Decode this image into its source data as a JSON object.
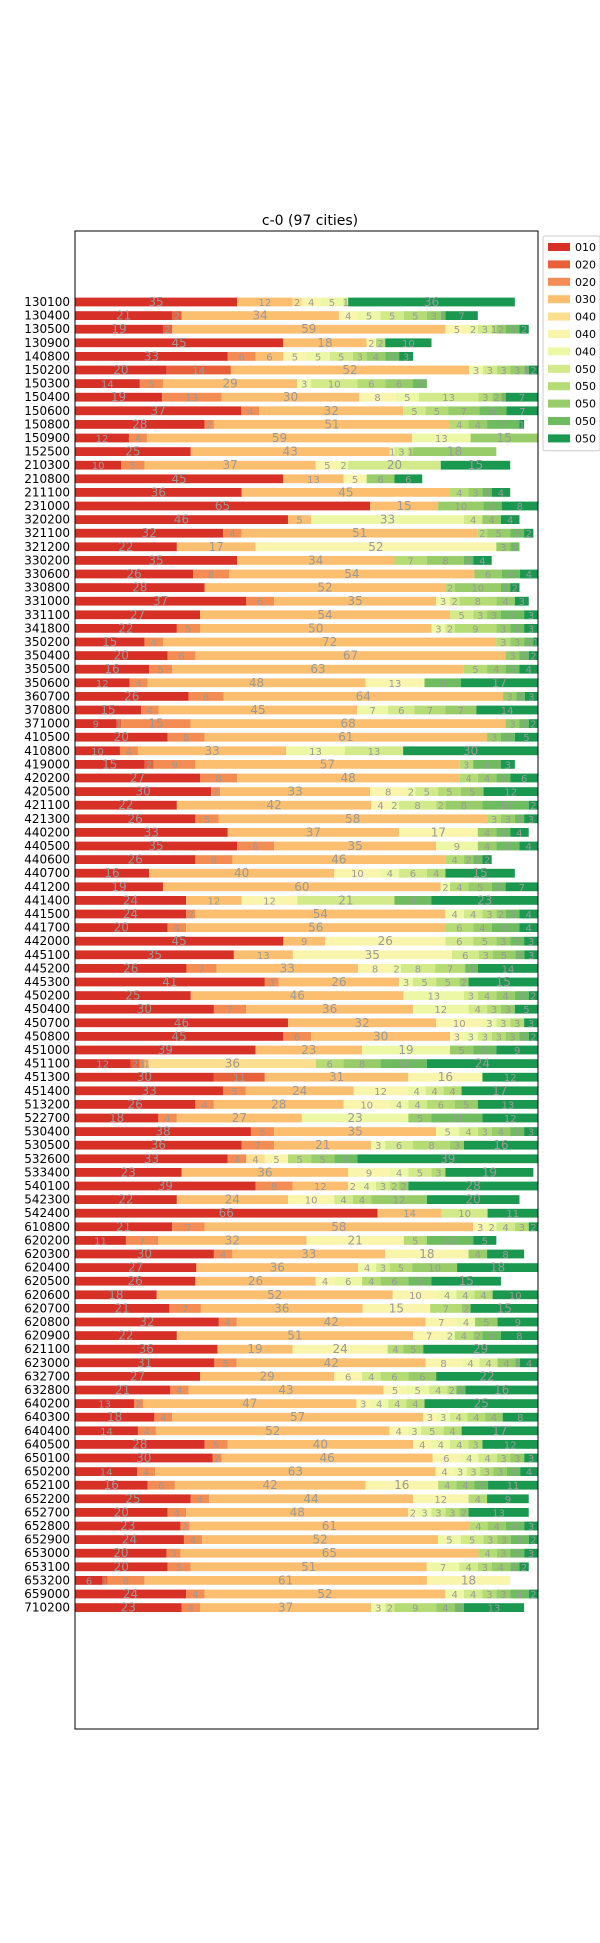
{
  "chart_data": {
    "type": "bar",
    "orientation": "horizontal",
    "stacked": true,
    "title": "c-0 (97 cities)",
    "xlabel": "",
    "ylabel": "",
    "xlim": [
      0,
      100
    ],
    "legend_position": "outside-top-right",
    "grid": false,
    "series": [
      {
        "name": "010",
        "color": "#d73027"
      },
      {
        "name": "020",
        "color": "#e8603a"
      },
      {
        "name": "020",
        "color": "#f48d53"
      },
      {
        "name": "030",
        "color": "#fbbf6f"
      },
      {
        "name": "040",
        "color": "#fddd8e"
      },
      {
        "name": "040",
        "color": "#f9f5ad"
      },
      {
        "name": "040",
        "color": "#edf8a6"
      },
      {
        "name": "050",
        "color": "#d2ea8a"
      },
      {
        "name": "050",
        "color": "#b5dc74"
      },
      {
        "name": "050",
        "color": "#97cc68"
      },
      {
        "name": "050",
        "color": "#6fbb5f"
      },
      {
        "name": "050",
        "color": "#1a9850"
      }
    ],
    "categories": [
      "130100",
      "130400",
      "130500",
      "130900",
      "140800",
      "150200",
      "150300",
      "150400",
      "150600",
      "150800",
      "150900",
      "152500",
      "210300",
      "210800",
      "211100",
      "231000",
      "320200",
      "321100",
      "321200",
      "330200",
      "330600",
      "330800",
      "331000",
      "331100",
      "341800",
      "350200",
      "350400",
      "350500",
      "350600",
      "360700",
      "370800",
      "371000",
      "410500",
      "410800",
      "419000",
      "420200",
      "420500",
      "421100",
      "421300",
      "440200",
      "440500",
      "440600",
      "440700",
      "441200",
      "441400",
      "441500",
      "441700",
      "442000",
      "445100",
      "445200",
      "445300",
      "450200",
      "450400",
      "450700",
      "450800",
      "451000",
      "451100",
      "451300",
      "451400",
      "513200",
      "522700",
      "530400",
      "530500",
      "532600",
      "533400",
      "540100",
      "542300",
      "542400",
      "610800",
      "620200",
      "620300",
      "620400",
      "620500",
      "620600",
      "620700",
      "620800",
      "620900",
      "621100",
      "623000",
      "632700",
      "632800",
      "640200",
      "640300",
      "640400",
      "640500",
      "650100",
      "650200",
      "652100",
      "652200",
      "652700",
      "652800",
      "652900",
      "653000",
      "653100",
      "653200",
      "659000",
      "710200"
    ],
    "values": [
      [
        35,
        0,
        0,
        12,
        2,
        4,
        5,
        1,
        0,
        0,
        0,
        36
      ],
      [
        21,
        2,
        0,
        34,
        0,
        4,
        5,
        5,
        5,
        3,
        1,
        7
      ],
      [
        19,
        2,
        0,
        59,
        0,
        5,
        2,
        3,
        1,
        2,
        3,
        2
      ],
      [
        45,
        0,
        0,
        18,
        0,
        2,
        0,
        0,
        2,
        0,
        0,
        10
      ],
      [
        33,
        0,
        6,
        6,
        0,
        5,
        5,
        5,
        3,
        4,
        3,
        3
      ],
      [
        20,
        14,
        0,
        52,
        0,
        0,
        3,
        3,
        3,
        3,
        1,
        2
      ],
      [
        14,
        0,
        5,
        29,
        0,
        0,
        3,
        10,
        6,
        6,
        3,
        0
      ],
      [
        19,
        0,
        13,
        30,
        0,
        8,
        5,
        13,
        3,
        2,
        1,
        7
      ],
      [
        37,
        0,
        4,
        32,
        0,
        0,
        0,
        5,
        5,
        7,
        6,
        7
      ],
      [
        28,
        0,
        2,
        51,
        0,
        0,
        0,
        0,
        4,
        4,
        7,
        1
      ],
      [
        12,
        0,
        4,
        59,
        0,
        0,
        13,
        0,
        0,
        15,
        0,
        0
      ],
      [
        25,
        0,
        0,
        43,
        0,
        0,
        1,
        3,
        1,
        18,
        0,
        0
      ],
      [
        10,
        0,
        5,
        37,
        0,
        5,
        2,
        20,
        0,
        0,
        0,
        15
      ],
      [
        45,
        0,
        0,
        13,
        0,
        5,
        0,
        0,
        0,
        6,
        0,
        6
      ],
      [
        36,
        0,
        0,
        45,
        0,
        0,
        0,
        0,
        4,
        3,
        2,
        4
      ],
      [
        65,
        0,
        0,
        15,
        0,
        0,
        0,
        0,
        0,
        10,
        4,
        8
      ],
      [
        46,
        0,
        0,
        5,
        0,
        0,
        33,
        4,
        0,
        4,
        0,
        4
      ],
      [
        32,
        0,
        4,
        51,
        0,
        0,
        0,
        0,
        2,
        5,
        3,
        2
      ],
      [
        22,
        0,
        0,
        17,
        0,
        52,
        0,
        0,
        0,
        3,
        2,
        0
      ],
      [
        35,
        0,
        0,
        34,
        0,
        0,
        0,
        0,
        7,
        8,
        2,
        4
      ],
      [
        26,
        0,
        8,
        54,
        0,
        0,
        0,
        0,
        0,
        6,
        4,
        4
      ],
      [
        28,
        0,
        0,
        52,
        0,
        0,
        0,
        0,
        2,
        10,
        2,
        2
      ],
      [
        37,
        0,
        6,
        35,
        0,
        0,
        3,
        2,
        8,
        4,
        0,
        3
      ],
      [
        27,
        0,
        0,
        54,
        0,
        0,
        0,
        5,
        3,
        3,
        5,
        3
      ],
      [
        22,
        0,
        5,
        50,
        0,
        0,
        3,
        2,
        9,
        3,
        3,
        3
      ],
      [
        15,
        0,
        4,
        72,
        0,
        0,
        0,
        0,
        3,
        3,
        2,
        1
      ],
      [
        20,
        0,
        6,
        67,
        0,
        0,
        0,
        0,
        0,
        3,
        2,
        2
      ],
      [
        16,
        0,
        5,
        63,
        0,
        0,
        0,
        0,
        5,
        4,
        3,
        4
      ],
      [
        12,
        0,
        4,
        48,
        0,
        13,
        0,
        0,
        0,
        0,
        8,
        17
      ],
      [
        26,
        0,
        8,
        64,
        0,
        0,
        0,
        0,
        0,
        3,
        2,
        3
      ],
      [
        15,
        0,
        4,
        45,
        0,
        0,
        7,
        6,
        7,
        7,
        0,
        14
      ],
      [
        9,
        1,
        15,
        68,
        0,
        0,
        0,
        0,
        0,
        3,
        2,
        2
      ],
      [
        20,
        0,
        8,
        61,
        0,
        0,
        0,
        0,
        0,
        3,
        3,
        5
      ],
      [
        10,
        0,
        4,
        33,
        0,
        0,
        13,
        13,
        0,
        0,
        0,
        30
      ],
      [
        15,
        2,
        9,
        57,
        0,
        0,
        0,
        0,
        3,
        0,
        6,
        3
      ],
      [
        27,
        0,
        8,
        48,
        0,
        0,
        0,
        0,
        4,
        4,
        3,
        6
      ],
      [
        30,
        0,
        2,
        33,
        0,
        8,
        2,
        5,
        5,
        5,
        0,
        12
      ],
      [
        22,
        0,
        0,
        42,
        0,
        4,
        2,
        8,
        2,
        8,
        10,
        2
      ],
      [
        26,
        0,
        5,
        58,
        0,
        0,
        0,
        0,
        3,
        3,
        2,
        3
      ],
      [
        33,
        0,
        0,
        37,
        0,
        17,
        0,
        0,
        0,
        4,
        3,
        4
      ],
      [
        35,
        0,
        8,
        35,
        0,
        0,
        9,
        0,
        0,
        4,
        5,
        4
      ],
      [
        26,
        0,
        8,
        46,
        0,
        0,
        0,
        0,
        4,
        2,
        2,
        2
      ],
      [
        16,
        0,
        0,
        40,
        0,
        10,
        4,
        6,
        4,
        0,
        0,
        15
      ],
      [
        19,
        0,
        0,
        60,
        0,
        0,
        2,
        0,
        4,
        5,
        3,
        7
      ],
      [
        24,
        0,
        0,
        12,
        0,
        12,
        0,
        21,
        0,
        0,
        8,
        23
      ],
      [
        24,
        0,
        2,
        54,
        0,
        0,
        4,
        4,
        3,
        2,
        3,
        4
      ],
      [
        20,
        0,
        4,
        56,
        0,
        0,
        0,
        0,
        6,
        4,
        6,
        4
      ],
      [
        45,
        0,
        0,
        9,
        0,
        26,
        0,
        6,
        5,
        3,
        3,
        3
      ],
      [
        35,
        0,
        0,
        13,
        0,
        35,
        0,
        6,
        3,
        5,
        2,
        3
      ],
      [
        26,
        0,
        7,
        33,
        0,
        8,
        2,
        8,
        7,
        0,
        3,
        14
      ],
      [
        41,
        0,
        3,
        26,
        0,
        0,
        3,
        5,
        5,
        2,
        0,
        15
      ],
      [
        25,
        0,
        0,
        46,
        0,
        0,
        13,
        3,
        4,
        4,
        3,
        2
      ],
      [
        30,
        0,
        7,
        36,
        0,
        0,
        12,
        4,
        3,
        3,
        0,
        5
      ],
      [
        46,
        0,
        0,
        32,
        0,
        10,
        3,
        3,
        3,
        0,
        0,
        3
      ],
      [
        45,
        0,
        6,
        30,
        0,
        3,
        3,
        3,
        3,
        3,
        2,
        2
      ],
      [
        39,
        0,
        0,
        23,
        0,
        0,
        19,
        0,
        0,
        5,
        5,
        9
      ],
      [
        12,
        2,
        1,
        1,
        36,
        0,
        0,
        0,
        6,
        8,
        10,
        24
      ],
      [
        30,
        11,
        0,
        31,
        0,
        16,
        0,
        0,
        0,
        0,
        0,
        12
      ],
      [
        33,
        0,
        5,
        24,
        0,
        12,
        4,
        4,
        4,
        0,
        0,
        17
      ],
      [
        26,
        0,
        4,
        28,
        0,
        10,
        4,
        4,
        6,
        5,
        0,
        13
      ],
      [
        18,
        0,
        4,
        27,
        0,
        0,
        23,
        0,
        0,
        5,
        11,
        12
      ],
      [
        38,
        0,
        5,
        35,
        0,
        0,
        5,
        4,
        3,
        4,
        3,
        3
      ],
      [
        36,
        0,
        7,
        21,
        0,
        0,
        3,
        6,
        8,
        3,
        0,
        16
      ],
      [
        33,
        0,
        4,
        0,
        4,
        5,
        0,
        0,
        5,
        5,
        5,
        39
      ],
      [
        23,
        0,
        0,
        36,
        0,
        9,
        4,
        5,
        3,
        0,
        0,
        19
      ],
      [
        39,
        0,
        8,
        12,
        0,
        2,
        4,
        3,
        2,
        2,
        0,
        28
      ],
      [
        22,
        0,
        0,
        24,
        0,
        10,
        0,
        4,
        4,
        12,
        0,
        20
      ],
      [
        66,
        0,
        0,
        14,
        0,
        0,
        0,
        10,
        0,
        0,
        0,
        11
      ],
      [
        21,
        0,
        7,
        58,
        0,
        3,
        2,
        4,
        3,
        0,
        0,
        2
      ],
      [
        11,
        0,
        7,
        32,
        0,
        21,
        0,
        0,
        5,
        0,
        10,
        5
      ],
      [
        30,
        0,
        4,
        33,
        0,
        18,
        0,
        0,
        0,
        4,
        0,
        8
      ],
      [
        27,
        0,
        0,
        36,
        0,
        0,
        4,
        3,
        5,
        10,
        0,
        18
      ],
      [
        26,
        0,
        0,
        26,
        0,
        4,
        6,
        0,
        4,
        6,
        5,
        15
      ],
      [
        18,
        0,
        0,
        52,
        0,
        10,
        4,
        4,
        4,
        0,
        0,
        10
      ],
      [
        21,
        0,
        7,
        36,
        0,
        15,
        0,
        0,
        7,
        2,
        0,
        15
      ],
      [
        32,
        0,
        4,
        42,
        0,
        7,
        4,
        0,
        0,
        5,
        0,
        9
      ],
      [
        22,
        0,
        0,
        51,
        0,
        7,
        2,
        0,
        4,
        2,
        4,
        8
      ],
      [
        36,
        0,
        0,
        19,
        0,
        24,
        0,
        0,
        4,
        5,
        0,
        29
      ],
      [
        31,
        0,
        5,
        42,
        0,
        8,
        4,
        4,
        0,
        4,
        1,
        4
      ],
      [
        27,
        0,
        0,
        29,
        0,
        6,
        0,
        4,
        6,
        6,
        0,
        22
      ],
      [
        21,
        0,
        4,
        43,
        0,
        5,
        5,
        4,
        2,
        0,
        2,
        16
      ],
      [
        13,
        0,
        2,
        47,
        0,
        3,
        4,
        4,
        4,
        0,
        0,
        25
      ],
      [
        18,
        0,
        4,
        57,
        0,
        3,
        3,
        4,
        4,
        4,
        0,
        8
      ],
      [
        14,
        0,
        4,
        52,
        0,
        4,
        3,
        5,
        4,
        0,
        0,
        17
      ],
      [
        28,
        0,
        5,
        40,
        0,
        4,
        4,
        4,
        3,
        0,
        0,
        12
      ],
      [
        30,
        0,
        2,
        46,
        0,
        6,
        4,
        4,
        3,
        3,
        0,
        3
      ],
      [
        14,
        0,
        4,
        63,
        0,
        4,
        3,
        3,
        3,
        3,
        3,
        4
      ],
      [
        16,
        0,
        6,
        42,
        0,
        16,
        0,
        0,
        4,
        4,
        3,
        11
      ],
      [
        25,
        0,
        4,
        44,
        0,
        12,
        0,
        0,
        4,
        0,
        0,
        9
      ],
      [
        20,
        0,
        4,
        48,
        0,
        2,
        3,
        3,
        3,
        2,
        0,
        13
      ],
      [
        23,
        0,
        2,
        61,
        0,
        0,
        0,
        0,
        4,
        4,
        4,
        3
      ],
      [
        24,
        0,
        4,
        52,
        0,
        0,
        5,
        5,
        3,
        3,
        4,
        2
      ],
      [
        20,
        0,
        3,
        65,
        0,
        0,
        0,
        0,
        4,
        3,
        3,
        3
      ],
      [
        20,
        0,
        5,
        51,
        0,
        0,
        7,
        4,
        3,
        4,
        2,
        2
      ],
      [
        6,
        1,
        8,
        61,
        0,
        18,
        0,
        0,
        0,
        0,
        0,
        0
      ],
      [
        24,
        0,
        4,
        52,
        0,
        0,
        4,
        4,
        3,
        3,
        4,
        2
      ],
      [
        23,
        0,
        4,
        37,
        0,
        0,
        3,
        2,
        9,
        4,
        2,
        13
      ]
    ]
  }
}
